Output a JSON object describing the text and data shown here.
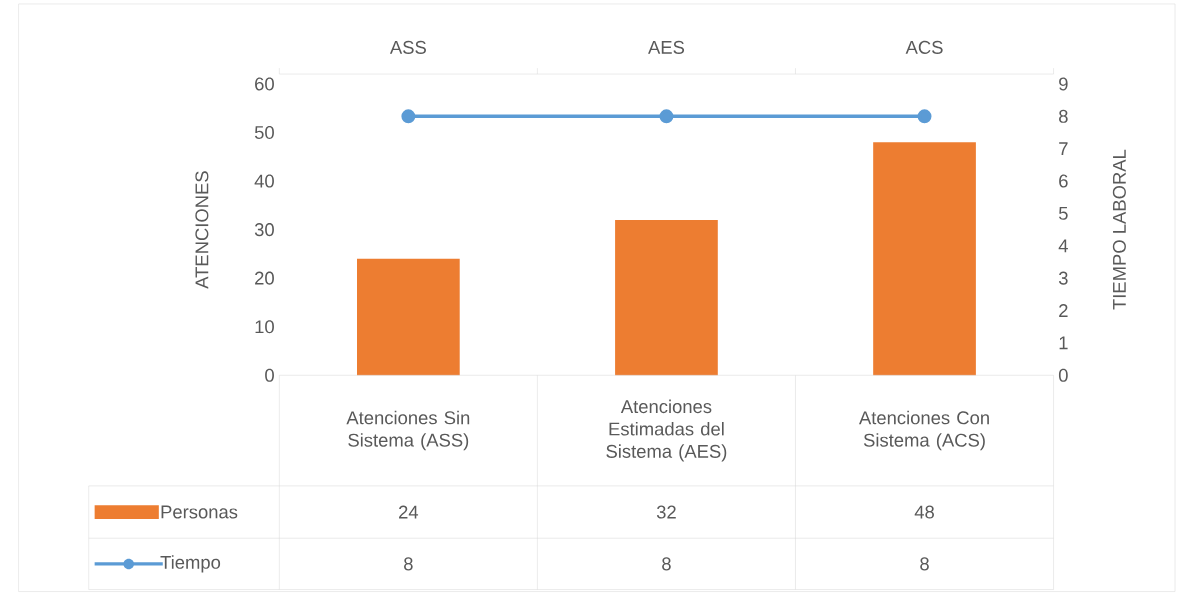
{
  "chart_data": {
    "type": "bar",
    "ylabel": "ATENCIONES",
    "y2label": "TIEMPO LABORAL",
    "categories": [
      "Atenciones Sin Sistema (ASS)",
      "Atenciones Estimadas del Sistema (AES)",
      "Atenciones Con Sistema (ACS)"
    ],
    "series": [
      {
        "name": "Personas",
        "color": "#ed7d31",
        "values": [
          24,
          32,
          48
        ]
      },
      {
        "name": "Tiempo",
        "type": "line",
        "axis": "y2",
        "color": "#5b9bd5",
        "marker": "circle",
        "values": [
          8,
          8,
          8
        ]
      }
    ],
    "ylim": [
      0,
      60
    ],
    "yticks": [
      0,
      10,
      20,
      30,
      40,
      50,
      60
    ],
    "y2lim": [
      0,
      9
    ],
    "y2ticks": [
      0,
      1,
      2,
      3,
      4,
      5,
      6,
      7,
      8,
      9
    ],
    "annotations": [
      "ASS",
      "AES",
      "ACS"
    ],
    "data_labels": true,
    "legend": "bottom",
    "grid": false
  }
}
